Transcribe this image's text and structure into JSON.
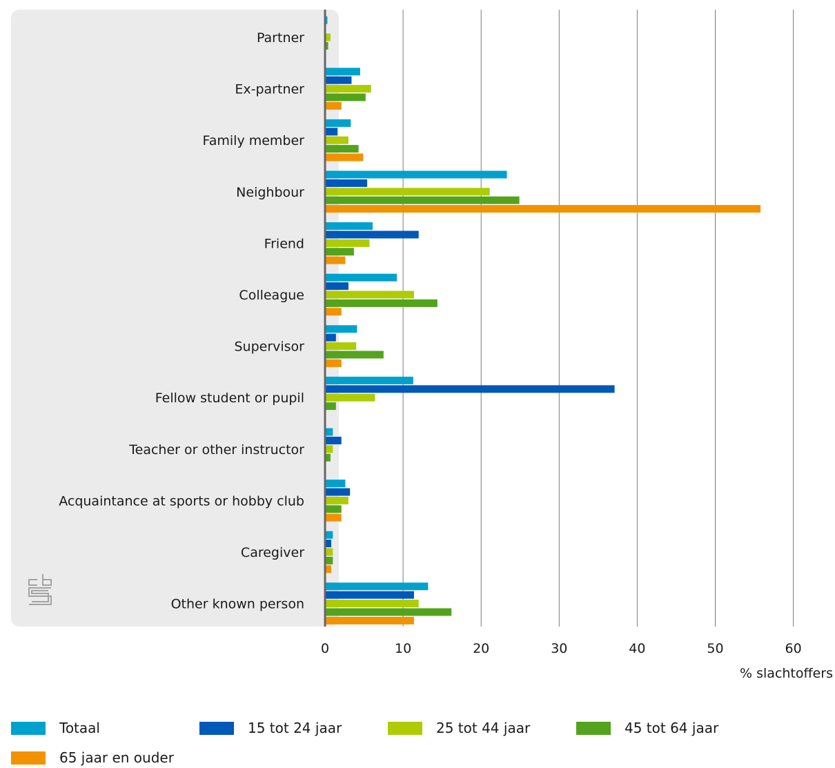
{
  "chart_data": {
    "type": "bar",
    "orientation": "horizontal",
    "xlabel": "% slachtoffers",
    "xlim": [
      0,
      60
    ],
    "xticks": [
      0,
      10,
      20,
      30,
      40,
      50,
      60
    ],
    "grid": true,
    "legend_position": "bottom",
    "categories": [
      "Partner",
      "Ex-partner",
      "Family member",
      "Neighbour",
      "Friend",
      "Colleague",
      "Supervisor",
      "Fellow student or pupil",
      "Teacher or other instructor",
      "Acquaintance at sports or hobby club",
      "Caregiver",
      "Other known person"
    ],
    "series": [
      {
        "name": "Totaal",
        "color": "#00a1cd",
        "values": [
          0.3,
          4.5,
          3.3,
          23.3,
          6.1,
          9.2,
          4.1,
          11.3,
          1.0,
          2.6,
          1.0,
          13.2
        ]
      },
      {
        "name": "15 tot 24 jaar",
        "color": "#0058b8",
        "values": [
          0,
          3.4,
          1.6,
          5.4,
          12.0,
          3.0,
          1.4,
          37.1,
          2.1,
          3.2,
          0.8,
          11.4
        ]
      },
      {
        "name": "25 tot 44 jaar",
        "color": "#afcb05",
        "values": [
          0.7,
          5.9,
          3.0,
          21.1,
          5.7,
          11.4,
          4.0,
          6.4,
          1.0,
          3.0,
          1.0,
          12.0
        ]
      },
      {
        "name": "45 tot 64 jaar",
        "color": "#53a31d",
        "values": [
          0.4,
          5.2,
          4.3,
          24.9,
          3.7,
          14.4,
          7.5,
          1.4,
          0.7,
          2.1,
          1.0,
          16.2
        ]
      },
      {
        "name": "65 jaar en ouder",
        "color": "#f39200",
        "values": [
          0,
          2.1,
          4.9,
          55.8,
          2.6,
          2.1,
          2.1,
          0,
          0,
          2.1,
          0.8,
          11.4
        ]
      }
    ]
  },
  "colors": {
    "panel_background": "#ebebeb",
    "gridline": "#7a7a7a",
    "axis": "#666666"
  },
  "logo": {
    "icon": "cbs-logo-icon",
    "text": "cbs"
  }
}
